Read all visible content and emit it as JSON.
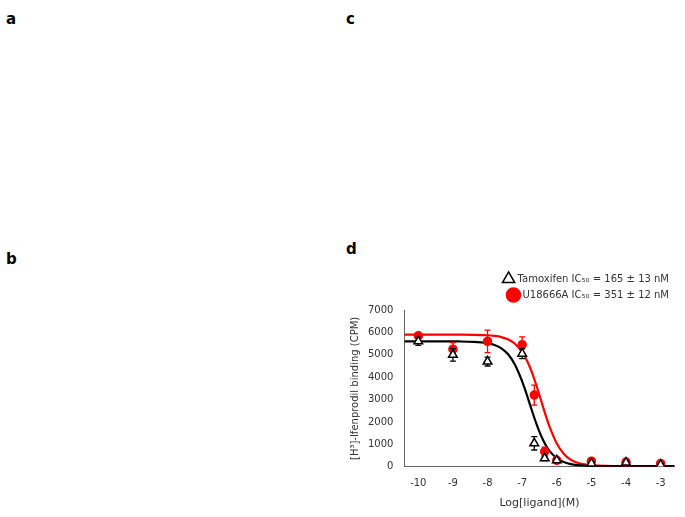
{
  "chart_data": {
    "type": "scatter",
    "annotations": [
      "a",
      "b",
      "c",
      "d"
    ],
    "x_label": "Log[ligand](M)",
    "y_label": "[H³]-Ifenprodil binding (CPM)",
    "xlim": [
      -10.4,
      -2.6
    ],
    "ylim": [
      0,
      7000
    ],
    "xticks": [
      -10,
      -9,
      -8,
      -7,
      -6,
      -5,
      -4,
      -3
    ],
    "yticks": [
      0,
      1000,
      2000,
      3000,
      4000,
      5000,
      6000,
      7000
    ],
    "grid": false,
    "legend": "upper right",
    "series": [
      {
        "name": "Tamoxifen IC₅₀ = 165 ± 13 nM",
        "color": "black",
        "marker": "triangle-open",
        "x": [
          -10,
          -9,
          -8,
          -7,
          -6.65,
          -6.35,
          -6,
          -5,
          -4,
          -3
        ],
        "values": [
          5600,
          5000,
          4700,
          5050,
          1050,
          380,
          290,
          150,
          190,
          90
        ],
        "err": [
          180,
          280,
          200,
          220,
          300,
          100,
          90,
          70,
          90,
          40
        ],
        "curve": {
          "x": [
            -10.4,
            -9.6,
            -8.8,
            -8.4,
            -8.0,
            -7.8,
            -7.6,
            -7.4,
            -7.2,
            -7.0,
            -6.9,
            -6.8,
            -6.7,
            -6.6,
            -6.5,
            -6.4,
            -6.3,
            -6.2,
            -6.0,
            -5.8,
            -5.6,
            -5.4,
            -5.2,
            -5.0,
            -4.6,
            -4.2,
            -3.8,
            -3.4,
            -3.0,
            -2.6
          ],
          "values": [
            5600,
            5600,
            5595,
            5579,
            5518,
            5439,
            5288,
            5011,
            4536,
            3817,
            3375,
            2902,
            2423,
            1967,
            1557,
            1205,
            916,
            688,
            380,
            211,
            122,
            77,
            54,
            42,
            33,
            31,
            30,
            30,
            30,
            30
          ]
        }
      },
      {
        "name": "U18666A IC₅₀ = 351 ± 12 nM",
        "color": "red",
        "marker": "circle",
        "x": [
          -10,
          -9,
          -8,
          -7,
          -6.65,
          -6.35,
          -6,
          -5,
          -4,
          -3
        ],
        "values": [
          5850,
          5250,
          5600,
          5450,
          3200,
          680,
          290,
          250,
          210,
          150
        ],
        "err": [
          140,
          300,
          500,
          350,
          450,
          200,
          90,
          90,
          70,
          45
        ],
        "curve": {
          "x": [
            -10.4,
            -9.6,
            -8.8,
            -8.4,
            -8.0,
            -7.8,
            -7.6,
            -7.4,
            -7.2,
            -7.0,
            -6.9,
            -6.8,
            -6.7,
            -6.6,
            -6.5,
            -6.4,
            -6.3,
            -6.2,
            -6.0,
            -5.8,
            -5.6,
            -5.4,
            -5.2,
            -5.0,
            -4.6,
            -4.2,
            -3.8,
            -3.4,
            -3.0,
            -2.6
          ],
          "values": [
            5900,
            5900,
            5898,
            5893,
            5872,
            5844,
            5790,
            5684,
            5484,
            5125,
            4861,
            4533,
            4138,
            3685,
            3193,
            2687,
            2198,
            1750,
            1040,
            584,
            321,
            180,
            106,
            68,
            40,
            32,
            31,
            30,
            30,
            30
          ]
        }
      }
    ]
  }
}
